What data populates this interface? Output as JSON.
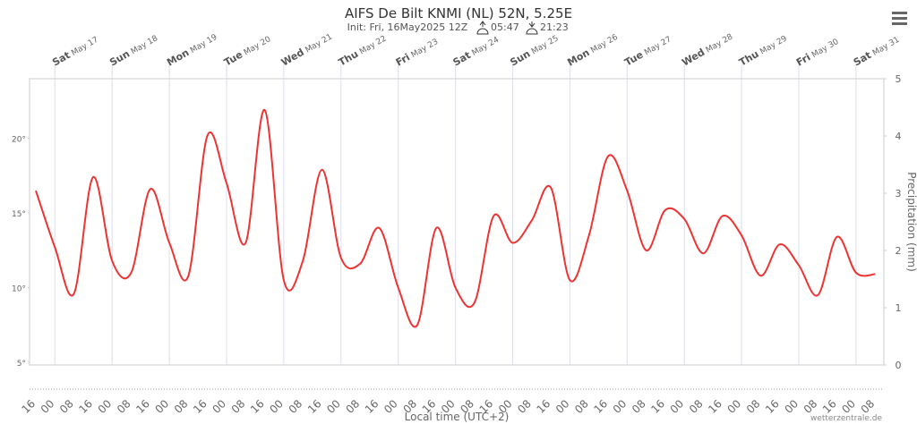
{
  "chart_data": {
    "type": "line",
    "title": "AIFS De Bilt KNMI (NL) 52N, 5.25E",
    "subtitle": "Init: Fri, 16May2025 12Z",
    "sunrise": "05:47",
    "sunset": "21:23",
    "x_label": "Local time (UTC+2)",
    "y2_label": "Precipitation (mm)",
    "credit": "wetterzentrale.de",
    "categories": [
      "16",
      "00",
      "08",
      "16",
      "00",
      "08",
      "16",
      "00",
      "08",
      "16",
      "00",
      "08",
      "16",
      "00",
      "08",
      "16",
      "00",
      "08",
      "16",
      "00",
      "08",
      "16",
      "00",
      "08",
      "16",
      "00",
      "08",
      "16",
      "00",
      "08",
      "16",
      "00",
      "08",
      "16",
      "00",
      "08",
      "16",
      "00",
      "08",
      "16",
      "00",
      "08",
      "16",
      "00",
      "08"
    ],
    "days": [
      {
        "weekday": "Sat",
        "date": "May 17"
      },
      {
        "weekday": "Sun",
        "date": "May 18"
      },
      {
        "weekday": "Mon",
        "date": "May 19"
      },
      {
        "weekday": "Tue",
        "date": "May 20"
      },
      {
        "weekday": "Wed",
        "date": "May 21"
      },
      {
        "weekday": "Thu",
        "date": "May 22"
      },
      {
        "weekday": "Fri",
        "date": "May 23"
      },
      {
        "weekday": "Sat",
        "date": "May 24"
      },
      {
        "weekday": "Sun",
        "date": "May 25"
      },
      {
        "weekday": "Mon",
        "date": "May 26"
      },
      {
        "weekday": "Tue",
        "date": "May 27"
      },
      {
        "weekday": "Wed",
        "date": "May 28"
      },
      {
        "weekday": "Thu",
        "date": "May 29"
      },
      {
        "weekday": "Fri",
        "date": "May 30"
      },
      {
        "weekday": "Sat",
        "date": "May 31"
      }
    ],
    "series": [
      {
        "name": "Temperature",
        "color": "#ee3333",
        "values": [
          16.5,
          12.7,
          9.6,
          17.4,
          11.8,
          11.0,
          16.6,
          13.0,
          10.8,
          20.2,
          17.0,
          13.0,
          21.9,
          10.5,
          11.8,
          17.9,
          12.0,
          11.6,
          14.0,
          10.0,
          7.5,
          14.0,
          10.0,
          9.0,
          14.8,
          13.0,
          14.5,
          16.7,
          10.5,
          13.5,
          18.8,
          16.5,
          12.5,
          15.2,
          14.6,
          12.3,
          14.8,
          13.5,
          10.8,
          12.9,
          11.5,
          9.5,
          13.4,
          11.0,
          10.9
        ]
      }
    ],
    "ylim": [
      5,
      24
    ],
    "yticks": [
      {
        "value": 5,
        "label": "5°"
      },
      {
        "value": 10,
        "label": "10°"
      },
      {
        "value": 15,
        "label": "15°"
      },
      {
        "value": 20,
        "label": "20°"
      }
    ],
    "y2lim": [
      0,
      5
    ],
    "y2ticks": [
      0,
      1,
      2,
      3,
      4,
      5
    ]
  }
}
